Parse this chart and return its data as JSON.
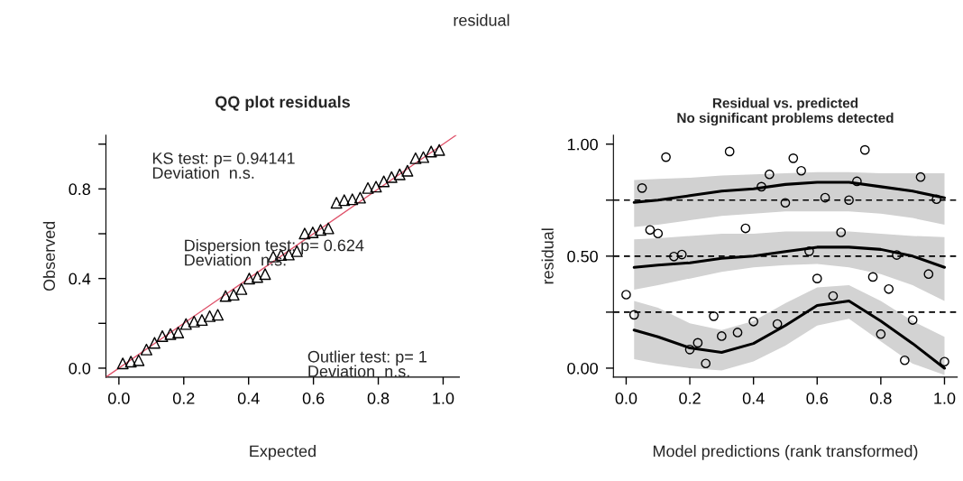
{
  "chart_data": [
    {
      "type": "scatter",
      "title": "QQ plot residuals",
      "xlabel": "Expected",
      "ylabel": "Observed",
      "annotations": [
        "residual",
        "KS test: p= 0.94141\nDeviation  n.s.",
        "Dispersion test: p= 0.624\nDeviation  n.s.",
        "Outlier test: p= 1\nDeviation  n.s."
      ],
      "xlim": [
        -0.04,
        1.05
      ],
      "ylim": [
        -0.04,
        1.04
      ],
      "xticks": [
        {
          "value": 0,
          "label": "0.0"
        },
        {
          "value": 0.2,
          "label": "0.2"
        },
        {
          "value": 0.4,
          "label": "0.4"
        },
        {
          "value": 0.6,
          "label": "0.6"
        },
        {
          "value": 0.8,
          "label": "0.8"
        },
        {
          "value": 1,
          "label": "1.0"
        }
      ],
      "yticks": [
        {
          "value": 0,
          "label": "0.0"
        },
        {
          "value": 0.2,
          "label": null
        },
        {
          "value": 0.4,
          "label": "0.4"
        },
        {
          "value": 0.6,
          "label": null
        },
        {
          "value": 0.8,
          "label": "0.8"
        },
        {
          "value": 1,
          "label": null
        }
      ],
      "grid": false,
      "legend": false,
      "series": [
        {
          "type": "line",
          "color": "#df536b",
          "marker": "none",
          "line_style": "solid",
          "x": [
            -0.04,
            1.04
          ],
          "values": [
            -0.04,
            1.04
          ]
        },
        {
          "color": "#000000",
          "marker": "triangle",
          "x": [
            0.012,
            0.037,
            0.061,
            0.085,
            0.11,
            0.134,
            0.159,
            0.183,
            0.207,
            0.232,
            0.256,
            0.28,
            0.305,
            0.329,
            0.354,
            0.378,
            0.402,
            0.427,
            0.451,
            0.476,
            0.5,
            0.524,
            0.549,
            0.573,
            0.598,
            0.622,
            0.646,
            0.671,
            0.695,
            0.72,
            0.744,
            0.768,
            0.793,
            0.817,
            0.841,
            0.866,
            0.89,
            0.915,
            0.939,
            0.963,
            0.988
          ],
          "values": [
            0.021,
            0.029,
            0.035,
            0.083,
            0.113,
            0.143,
            0.152,
            0.159,
            0.197,
            0.208,
            0.215,
            0.232,
            0.238,
            0.322,
            0.328,
            0.353,
            0.4,
            0.407,
            0.42,
            0.498,
            0.505,
            0.507,
            0.522,
            0.601,
            0.606,
            0.617,
            0.624,
            0.738,
            0.75,
            0.754,
            0.761,
            0.804,
            0.81,
            0.834,
            0.853,
            0.865,
            0.881,
            0.937,
            0.942,
            0.967,
            0.974
          ]
        }
      ]
    },
    {
      "type": "scatter",
      "title": "Residual vs. predicted\nNo significant problems detected",
      "xlabel": "Model predictions (rank transformed)",
      "ylabel": "residual",
      "xlim": [
        -0.04,
        1.04
      ],
      "ylim": [
        -0.04,
        1.04
      ],
      "xticks": [
        {
          "value": 0,
          "label": "0.0"
        },
        {
          "value": 0.2,
          "label": "0.2"
        },
        {
          "value": 0.4,
          "label": "0.4"
        },
        {
          "value": 0.6,
          "label": "0.6"
        },
        {
          "value": 0.8,
          "label": "0.8"
        },
        {
          "value": 1,
          "label": "1.0"
        }
      ],
      "yticks": [
        {
          "value": 0,
          "label": "0.00"
        },
        {
          "value": 0.25,
          "label": null
        },
        {
          "value": 0.5,
          "label": "0.50"
        },
        {
          "value": 0.75,
          "label": null
        },
        {
          "value": 1,
          "label": "1.00"
        }
      ],
      "grid": false,
      "legend": false,
      "ref_lines": [
        {
          "axis": "y",
          "value": 0.25,
          "color": "#000000",
          "line_style": "dashed"
        },
        {
          "axis": "y",
          "value": 0.5,
          "color": "#000000",
          "line_style": "dashed"
        },
        {
          "axis": "y",
          "value": 0.75,
          "color": "#000000",
          "line_style": "dashed"
        }
      ],
      "series": [
        {
          "type": "line",
          "color": "#000000",
          "marker": "none",
          "line_style": "solid",
          "x": [
            0.025,
            0.1,
            0.2,
            0.3,
            0.4,
            0.5,
            0.6,
            0.7,
            0.8,
            0.9,
            1.0
          ],
          "values": [
            0.74,
            0.75,
            0.77,
            0.79,
            0.8,
            0.82,
            0.83,
            0.83,
            0.81,
            0.79,
            0.76
          ],
          "lower": [
            0.63,
            0.64,
            0.66,
            0.68,
            0.69,
            0.7,
            0.7,
            0.7,
            0.69,
            0.67,
            0.64
          ],
          "upper": [
            0.84,
            0.845,
            0.85,
            0.86,
            0.865,
            0.87,
            0.875,
            0.875,
            0.87,
            0.87,
            0.87
          ]
        },
        {
          "type": "line",
          "color": "#000000",
          "marker": "none",
          "line_style": "solid",
          "x": [
            0.025,
            0.1,
            0.2,
            0.3,
            0.4,
            0.5,
            0.6,
            0.7,
            0.8,
            0.9,
            1.0
          ],
          "values": [
            0.45,
            0.46,
            0.47,
            0.49,
            0.5,
            0.52,
            0.54,
            0.54,
            0.53,
            0.5,
            0.45
          ],
          "lower": [
            0.35,
            0.37,
            0.4,
            0.43,
            0.45,
            0.46,
            0.465,
            0.45,
            0.42,
            0.37,
            0.3
          ],
          "upper": [
            0.575,
            0.58,
            0.59,
            0.6,
            0.6,
            0.61,
            0.61,
            0.61,
            0.6,
            0.59,
            0.585
          ]
        },
        {
          "type": "line",
          "color": "#000000",
          "marker": "none",
          "line_style": "solid",
          "x": [
            0.025,
            0.1,
            0.2,
            0.3,
            0.4,
            0.5,
            0.6,
            0.7,
            0.8,
            0.9,
            1.0
          ],
          "values": [
            0.17,
            0.14,
            0.09,
            0.07,
            0.11,
            0.19,
            0.28,
            0.3,
            0.21,
            0.11,
            0.0
          ],
          "lower": [
            0.04,
            0.02,
            0.0,
            -0.01,
            0.03,
            0.1,
            0.19,
            0.22,
            0.12,
            0.02,
            -0.03
          ],
          "upper": [
            0.3,
            0.27,
            0.2,
            0.17,
            0.21,
            0.29,
            0.36,
            0.37,
            0.3,
            0.21,
            0.14
          ]
        },
        {
          "color": "#000000",
          "marker": "circle",
          "x": [
            0.0,
            0.025,
            0.05,
            0.075,
            0.1,
            0.125,
            0.15,
            0.175,
            0.2,
            0.225,
            0.25,
            0.275,
            0.3,
            0.325,
            0.35,
            0.375,
            0.4,
            0.425,
            0.45,
            0.475,
            0.5,
            0.525,
            0.55,
            0.575,
            0.6,
            0.625,
            0.65,
            0.675,
            0.7,
            0.725,
            0.75,
            0.775,
            0.8,
            0.825,
            0.85,
            0.875,
            0.9,
            0.925,
            0.95,
            0.975,
            1.0
          ],
          "values": [
            0.328,
            0.238,
            0.804,
            0.617,
            0.601,
            0.942,
            0.498,
            0.507,
            0.083,
            0.113,
            0.021,
            0.232,
            0.143,
            0.967,
            0.159,
            0.624,
            0.208,
            0.81,
            0.865,
            0.197,
            0.738,
            0.937,
            0.881,
            0.522,
            0.4,
            0.761,
            0.322,
            0.606,
            0.75,
            0.834,
            0.974,
            0.407,
            0.152,
            0.353,
            0.505,
            0.035,
            0.215,
            0.853,
            0.42,
            0.754,
            0.029
          ]
        }
      ]
    }
  ]
}
